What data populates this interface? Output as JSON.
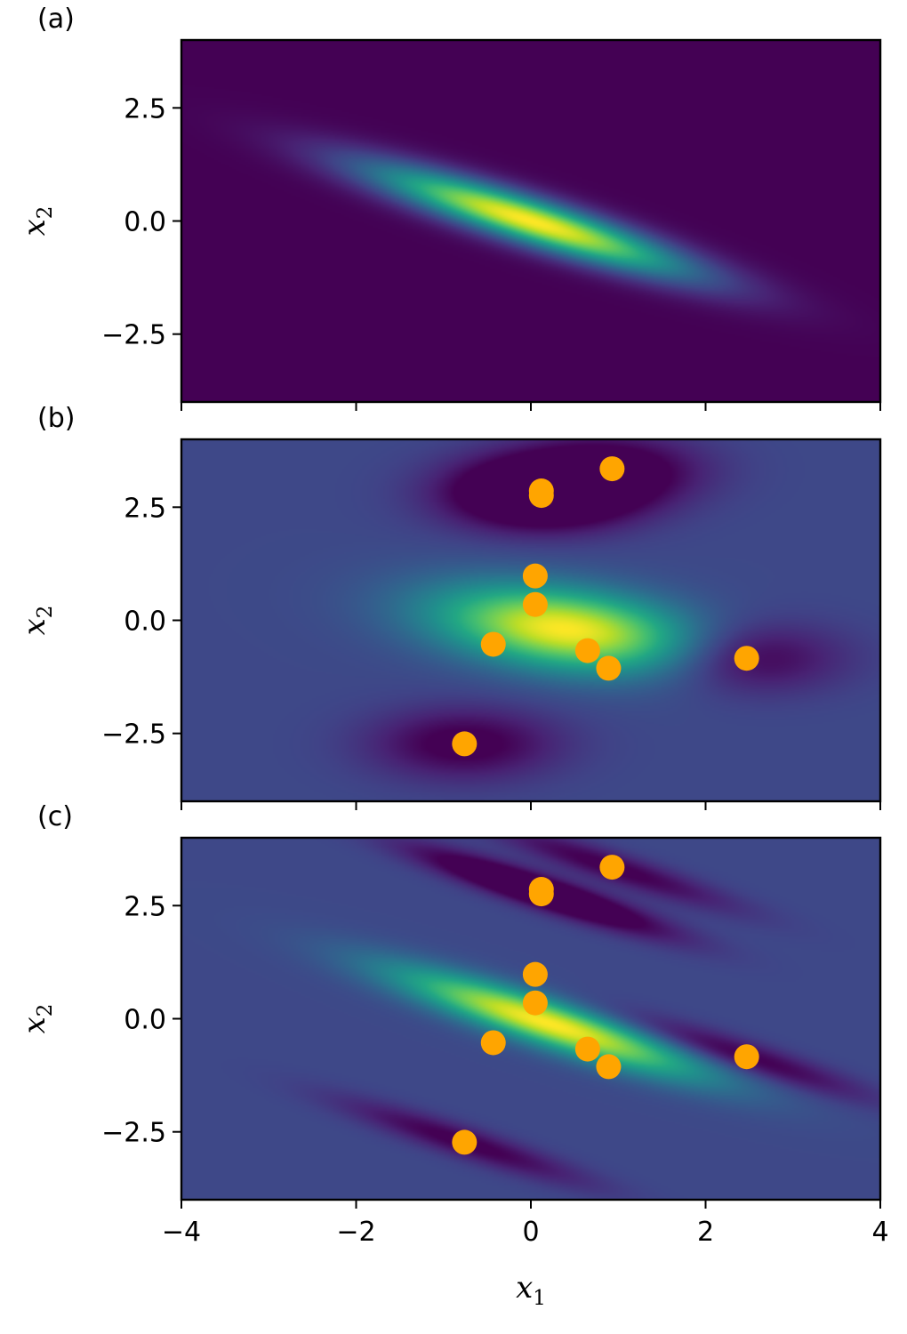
{
  "chart_data": [
    {
      "type": "heatmap",
      "panel_label": "(a)",
      "xlabel": "",
      "ylabel": "x2",
      "ylabel_main": "x",
      "ylabel_sub": "2",
      "xlim": [
        -4,
        4
      ],
      "ylim": [
        -4,
        4
      ],
      "x_ticks": [
        -4,
        -2,
        0,
        2,
        4
      ],
      "x_tick_labels_visible": false,
      "y_ticks": [
        -2.5,
        0.0,
        2.5
      ],
      "y_tick_labels": [
        "−2.5",
        "0.0",
        "2.5"
      ],
      "colormap": "viridis",
      "field": {
        "kind": "gaussian",
        "mean": [
          0.0,
          0.0
        ],
        "covariance": [
          [
            1.6,
            -0.95
          ],
          [
            -0.95,
            0.7
          ]
        ]
      },
      "points": []
    },
    {
      "type": "heatmap",
      "panel_label": "(b)",
      "xlabel": "",
      "ylabel": "x2",
      "ylabel_main": "x",
      "ylabel_sub": "2",
      "xlim": [
        -4,
        4
      ],
      "ylim": [
        -4,
        4
      ],
      "x_ticks": [
        -4,
        -2,
        0,
        2,
        4
      ],
      "x_tick_labels_visible": false,
      "y_ticks": [
        -2.5,
        0.0,
        2.5
      ],
      "y_tick_labels": [
        "−2.5",
        "0.0",
        "2.5"
      ],
      "colormap": "viridis",
      "field": {
        "kind": "kernel-sum",
        "baseline": 0.22,
        "center": [
          0.4,
          -0.2
        ],
        "center_cov": [
          [
            1.1,
            -0.25
          ],
          [
            -0.25,
            0.45
          ]
        ],
        "center_weight": 0.78,
        "kernel_cov": [
          [
            0.55,
            0.0
          ],
          [
            0.0,
            0.3
          ]
        ],
        "kernel_weight": -0.26,
        "kernel_at_points": [
          0,
          1,
          2,
          8,
          9
        ]
      },
      "points": [
        {
          "x": 0.93,
          "y": 3.35
        },
        {
          "x": 0.12,
          "y": 2.86
        },
        {
          "x": 0.12,
          "y": 2.76
        },
        {
          "x": 0.05,
          "y": 0.98
        },
        {
          "x": 0.05,
          "y": 0.35
        },
        {
          "x": -0.43,
          "y": -0.53
        },
        {
          "x": 0.65,
          "y": -0.67
        },
        {
          "x": 0.89,
          "y": -1.06
        },
        {
          "x": 2.47,
          "y": -0.84
        },
        {
          "x": -0.76,
          "y": -2.73
        }
      ],
      "point_color": "#ffa500"
    },
    {
      "type": "heatmap",
      "panel_label": "(c)",
      "xlabel": "x1",
      "xlabel_main": "x",
      "xlabel_sub": "1",
      "ylabel": "x2",
      "ylabel_main": "x",
      "ylabel_sub": "2",
      "xlim": [
        -4,
        4
      ],
      "ylim": [
        -4,
        4
      ],
      "x_ticks": [
        -4,
        -2,
        0,
        2,
        4
      ],
      "x_tick_labels": [
        "−4",
        "−2",
        "0",
        "2",
        "4"
      ],
      "x_tick_labels_visible": true,
      "y_ticks": [
        -2.5,
        0.0,
        2.5
      ],
      "y_tick_labels": [
        "−2.5",
        "0.0",
        "2.5"
      ],
      "colormap": "viridis",
      "field": {
        "kind": "kernel-sum",
        "baseline": 0.22,
        "center": [
          0.2,
          -0.1
        ],
        "center_cov": [
          [
            1.4,
            -0.85
          ],
          [
            -0.85,
            0.65
          ]
        ],
        "center_weight": 0.78,
        "kernel_cov": [
          [
            0.9,
            -0.55
          ],
          [
            -0.55,
            0.4
          ]
        ],
        "kernel_weight": -0.24,
        "kernel_at_points": [
          0,
          1,
          2,
          8,
          9
        ]
      },
      "points": [
        {
          "x": 0.93,
          "y": 3.35
        },
        {
          "x": 0.12,
          "y": 2.86
        },
        {
          "x": 0.12,
          "y": 2.76
        },
        {
          "x": 0.05,
          "y": 0.98
        },
        {
          "x": 0.05,
          "y": 0.35
        },
        {
          "x": -0.43,
          "y": -0.53
        },
        {
          "x": 0.65,
          "y": -0.67
        },
        {
          "x": 0.89,
          "y": -1.06
        },
        {
          "x": 2.47,
          "y": -0.84
        },
        {
          "x": -0.76,
          "y": -2.73
        }
      ],
      "point_color": "#ffa500"
    }
  ]
}
